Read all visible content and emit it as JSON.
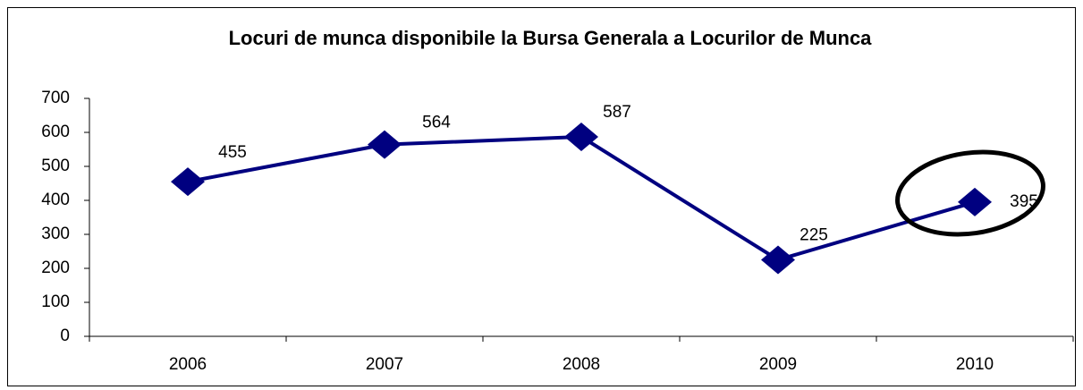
{
  "chart_data": {
    "type": "line",
    "title": "Locuri de munca disponibile la Bursa Generala a Locurilor de Munca",
    "categories": [
      "2006",
      "2007",
      "2008",
      "2009",
      "2010"
    ],
    "values": [
      455,
      564,
      587,
      225,
      395
    ],
    "color": "#000080",
    "ylim": [
      0,
      700
    ],
    "yticks": [
      0,
      100,
      200,
      300,
      400,
      500,
      600,
      700
    ],
    "grid": false
  }
}
